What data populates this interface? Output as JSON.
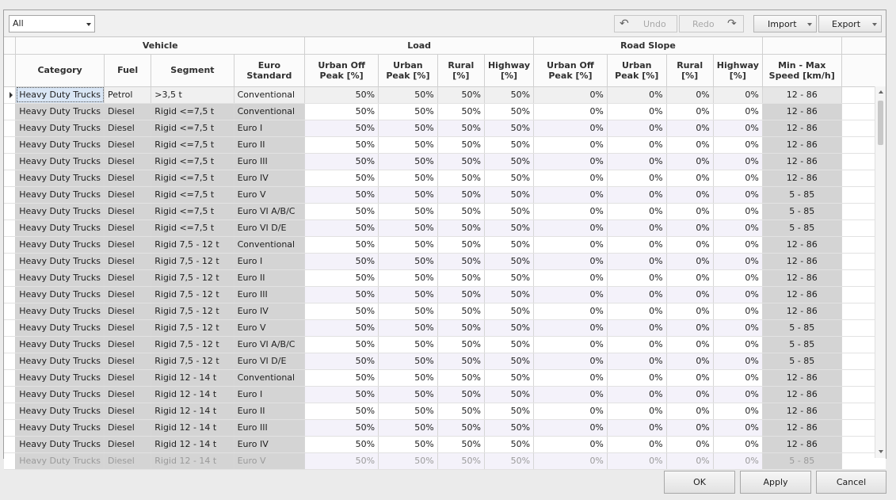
{
  "filter": {
    "value": "All"
  },
  "toolbar": {
    "undo_label": "Undo",
    "redo_label": "Redo",
    "import_label": "Import",
    "export_label": "Export",
    "undo_icon": "undo-arrow-icon",
    "redo_icon": "redo-arrow-icon"
  },
  "header": {
    "bands": {
      "vehicle": "Vehicle",
      "load": "Load",
      "road_slope": "Road Slope"
    },
    "columns": {
      "category": "Category",
      "fuel": "Fuel",
      "segment": "Segment",
      "euro": "Euro Standard",
      "load_uop": "Urban Off Peak [%]",
      "load_up": "Urban Peak [%]",
      "load_rural": "Rural [%]",
      "load_hw": "Highway [%]",
      "slope_uop": "Urban Off Peak [%]",
      "slope_up": "Urban Peak [%]",
      "slope_rural": "Rural [%]",
      "slope_hw": "Highway [%]",
      "speed": "Min - Max Speed [km/h]"
    }
  },
  "rows": [
    [
      "Heavy Duty Trucks",
      "Petrol",
      "&gt;3,5 t",
      "Conventional",
      "50%",
      "50%",
      "50%",
      "50%",
      "0%",
      "0%",
      "0%",
      "0%",
      "12 - 86"
    ],
    [
      "Heavy Duty Trucks",
      "Diesel",
      "Rigid &lt;=7,5 t",
      "Conventional",
      "50%",
      "50%",
      "50%",
      "50%",
      "0%",
      "0%",
      "0%",
      "0%",
      "12 - 86"
    ],
    [
      "Heavy Duty Trucks",
      "Diesel",
      "Rigid &lt;=7,5 t",
      "Euro I",
      "50%",
      "50%",
      "50%",
      "50%",
      "0%",
      "0%",
      "0%",
      "0%",
      "12 - 86"
    ],
    [
      "Heavy Duty Trucks",
      "Diesel",
      "Rigid &lt;=7,5 t",
      "Euro II",
      "50%",
      "50%",
      "50%",
      "50%",
      "0%",
      "0%",
      "0%",
      "0%",
      "12 - 86"
    ],
    [
      "Heavy Duty Trucks",
      "Diesel",
      "Rigid &lt;=7,5 t",
      "Euro III",
      "50%",
      "50%",
      "50%",
      "50%",
      "0%",
      "0%",
      "0%",
      "0%",
      "12 - 86"
    ],
    [
      "Heavy Duty Trucks",
      "Diesel",
      "Rigid &lt;=7,5 t",
      "Euro IV",
      "50%",
      "50%",
      "50%",
      "50%",
      "0%",
      "0%",
      "0%",
      "0%",
      "12 - 86"
    ],
    [
      "Heavy Duty Trucks",
      "Diesel",
      "Rigid &lt;=7,5 t",
      "Euro V",
      "50%",
      "50%",
      "50%",
      "50%",
      "0%",
      "0%",
      "0%",
      "0%",
      "5 - 85"
    ],
    [
      "Heavy Duty Trucks",
      "Diesel",
      "Rigid &lt;=7,5 t",
      "Euro VI A/B/C",
      "50%",
      "50%",
      "50%",
      "50%",
      "0%",
      "0%",
      "0%",
      "0%",
      "5 - 85"
    ],
    [
      "Heavy Duty Trucks",
      "Diesel",
      "Rigid &lt;=7,5 t",
      "Euro VI D/E",
      "50%",
      "50%",
      "50%",
      "50%",
      "0%",
      "0%",
      "0%",
      "0%",
      "5 - 85"
    ],
    [
      "Heavy Duty Trucks",
      "Diesel",
      "Rigid 7,5 - 12 t",
      "Conventional",
      "50%",
      "50%",
      "50%",
      "50%",
      "0%",
      "0%",
      "0%",
      "0%",
      "12 - 86"
    ],
    [
      "Heavy Duty Trucks",
      "Diesel",
      "Rigid 7,5 - 12 t",
      "Euro I",
      "50%",
      "50%",
      "50%",
      "50%",
      "0%",
      "0%",
      "0%",
      "0%",
      "12 - 86"
    ],
    [
      "Heavy Duty Trucks",
      "Diesel",
      "Rigid 7,5 - 12 t",
      "Euro II",
      "50%",
      "50%",
      "50%",
      "50%",
      "0%",
      "0%",
      "0%",
      "0%",
      "12 - 86"
    ],
    [
      "Heavy Duty Trucks",
      "Diesel",
      "Rigid 7,5 - 12 t",
      "Euro III",
      "50%",
      "50%",
      "50%",
      "50%",
      "0%",
      "0%",
      "0%",
      "0%",
      "12 - 86"
    ],
    [
      "Heavy Duty Trucks",
      "Diesel",
      "Rigid 7,5 - 12 t",
      "Euro IV",
      "50%",
      "50%",
      "50%",
      "50%",
      "0%",
      "0%",
      "0%",
      "0%",
      "12 - 86"
    ],
    [
      "Heavy Duty Trucks",
      "Diesel",
      "Rigid 7,5 - 12 t",
      "Euro V",
      "50%",
      "50%",
      "50%",
      "50%",
      "0%",
      "0%",
      "0%",
      "0%",
      "5 - 85"
    ],
    [
      "Heavy Duty Trucks",
      "Diesel",
      "Rigid 7,5 - 12 t",
      "Euro VI A/B/C",
      "50%",
      "50%",
      "50%",
      "50%",
      "0%",
      "0%",
      "0%",
      "0%",
      "5 - 85"
    ],
    [
      "Heavy Duty Trucks",
      "Diesel",
      "Rigid 7,5 - 12 t",
      "Euro VI D/E",
      "50%",
      "50%",
      "50%",
      "50%",
      "0%",
      "0%",
      "0%",
      "0%",
      "5 - 85"
    ],
    [
      "Heavy Duty Trucks",
      "Diesel",
      "Rigid 12 - 14 t",
      "Conventional",
      "50%",
      "50%",
      "50%",
      "50%",
      "0%",
      "0%",
      "0%",
      "0%",
      "12 - 86"
    ],
    [
      "Heavy Duty Trucks",
      "Diesel",
      "Rigid 12 - 14 t",
      "Euro I",
      "50%",
      "50%",
      "50%",
      "50%",
      "0%",
      "0%",
      "0%",
      "0%",
      "12 - 86"
    ],
    [
      "Heavy Duty Trucks",
      "Diesel",
      "Rigid 12 - 14 t",
      "Euro II",
      "50%",
      "50%",
      "50%",
      "50%",
      "0%",
      "0%",
      "0%",
      "0%",
      "12 - 86"
    ],
    [
      "Heavy Duty Trucks",
      "Diesel",
      "Rigid 12 - 14 t",
      "Euro III",
      "50%",
      "50%",
      "50%",
      "50%",
      "0%",
      "0%",
      "0%",
      "0%",
      "12 - 86"
    ],
    [
      "Heavy Duty Trucks",
      "Diesel",
      "Rigid 12 - 14 t",
      "Euro IV",
      "50%",
      "50%",
      "50%",
      "50%",
      "0%",
      "0%",
      "0%",
      "0%",
      "12 - 86"
    ],
    [
      "Heavy Duty Trucks",
      "Diesel",
      "Rigid 12 - 14 t",
      "Euro V",
      "50%",
      "50%",
      "50%",
      "50%",
      "0%",
      "0%",
      "0%",
      "0%",
      "5 - 85"
    ]
  ],
  "buttons": {
    "ok": "OK",
    "apply": "Apply",
    "cancel": "Cancel"
  }
}
